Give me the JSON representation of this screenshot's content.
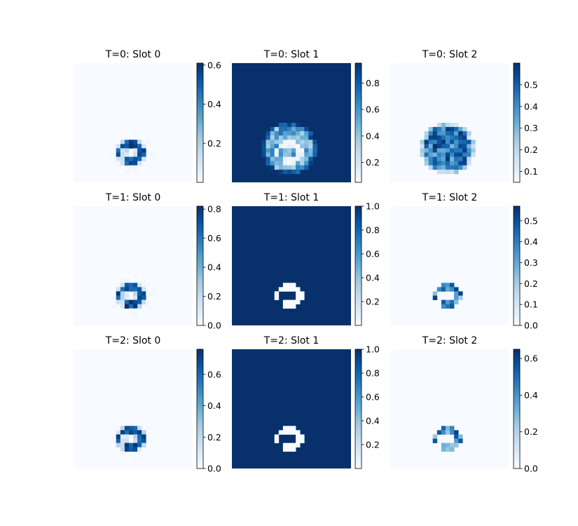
{
  "chart_data": {
    "type": "heatmap",
    "colormap": "Blues",
    "grid": false,
    "layout": "3x3 grid of heatmap panels, each with its own vertical colorbar",
    "panels": [
      {
        "title": "T=0: Slot 0",
        "background": "low",
        "pattern": "ring",
        "vmin": 0.0,
        "vmax": 0.61,
        "colorbar_ticks": [
          "0.2",
          "0.4",
          "0.6"
        ]
      },
      {
        "title": "T=0: Slot 1",
        "background": "high",
        "pattern": "blob-inverse",
        "vmin": 0.05,
        "vmax": 0.95,
        "colorbar_ticks": [
          "0.2",
          "0.4",
          "0.6",
          "0.8"
        ]
      },
      {
        "title": "T=0: Slot 2",
        "background": "low",
        "pattern": "blob",
        "vmin": 0.05,
        "vmax": 0.6,
        "colorbar_ticks": [
          "0.1",
          "0.2",
          "0.3",
          "0.4",
          "0.5"
        ]
      },
      {
        "title": "T=1: Slot 0",
        "background": "low",
        "pattern": "ring",
        "vmin": 0.0,
        "vmax": 0.82,
        "colorbar_ticks": [
          "0.0",
          "0.2",
          "0.4",
          "0.6",
          "0.8"
        ]
      },
      {
        "title": "T=1: Slot 1",
        "background": "high",
        "pattern": "ring-inverse",
        "vmin": 0.0,
        "vmax": 1.0,
        "colorbar_ticks": [
          "0.2",
          "0.4",
          "0.6",
          "0.8",
          "1.0"
        ]
      },
      {
        "title": "T=1: Slot 2",
        "background": "low",
        "pattern": "ring-light",
        "vmin": 0.0,
        "vmax": 0.57,
        "colorbar_ticks": [
          "0.0",
          "0.1",
          "0.2",
          "0.3",
          "0.4",
          "0.5"
        ]
      },
      {
        "title": "T=2: Slot 0",
        "background": "low",
        "pattern": "ring",
        "vmin": 0.0,
        "vmax": 0.76,
        "colorbar_ticks": [
          "0.0",
          "0.2",
          "0.4",
          "0.6"
        ]
      },
      {
        "title": "T=2: Slot 1",
        "background": "high",
        "pattern": "ring-inverse",
        "vmin": 0.0,
        "vmax": 1.0,
        "colorbar_ticks": [
          "0.2",
          "0.4",
          "0.6",
          "0.8",
          "1.0"
        ]
      },
      {
        "title": "T=2: Slot 2",
        "background": "low",
        "pattern": "ring-light",
        "vmin": 0.0,
        "vmax": 0.65,
        "colorbar_ticks": [
          "0.0",
          "0.2",
          "0.4",
          "0.6"
        ]
      }
    ]
  },
  "colors": {
    "blues_low": "#f7fbff",
    "blues_high": "#08306b"
  }
}
